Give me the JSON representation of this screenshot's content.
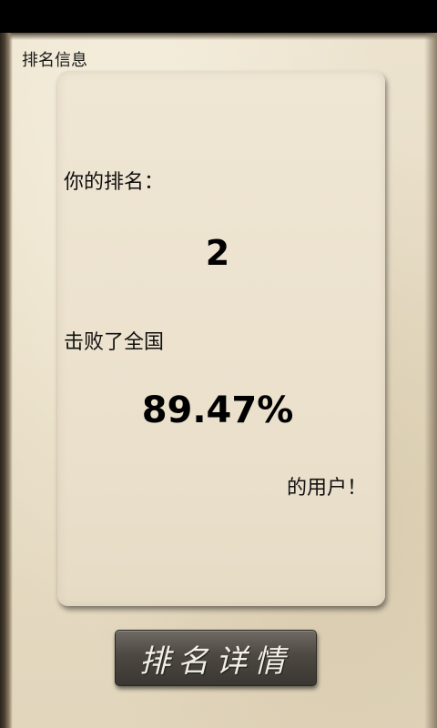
{
  "page": {
    "title": "排名信息"
  },
  "rank_card": {
    "rank_label": "你的排名：",
    "rank_value": "2",
    "beat_label": "击败了全国",
    "percent_value": "89.47%",
    "users_label": "的用户！"
  },
  "actions": {
    "details_label": "排名详情"
  },
  "colors": {
    "paper": "#e9dfcb",
    "button": "#4d4842",
    "text": "#111111"
  }
}
